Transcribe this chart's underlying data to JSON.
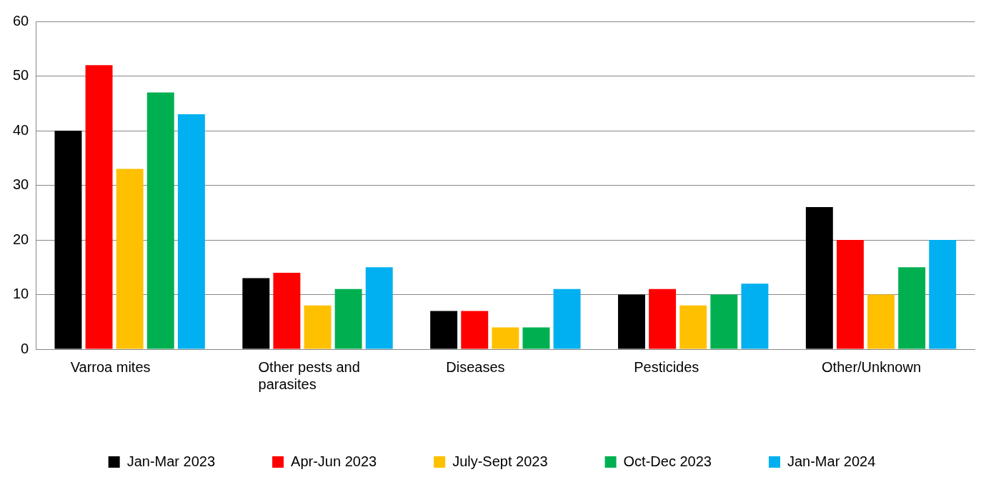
{
  "chart_data": {
    "type": "bar",
    "categories": [
      "Varroa mites",
      "Other pests and parasites",
      "Diseases",
      "Pesticides",
      "Other/Unknown"
    ],
    "series": [
      {
        "name": "Jan-Mar 2023",
        "color": "#000000",
        "values": [
          40,
          13,
          7,
          10,
          26
        ]
      },
      {
        "name": "Apr-Jun 2023",
        "color": "#ff0000",
        "values": [
          52,
          14,
          7,
          11,
          20
        ]
      },
      {
        "name": "July-Sept 2023",
        "color": "#ffc000",
        "values": [
          33,
          8,
          4,
          8,
          10
        ]
      },
      {
        "name": "Oct-Dec 2023",
        "color": "#00b050",
        "values": [
          47,
          11,
          4,
          10,
          15
        ]
      },
      {
        "name": "Jan-Mar 2024",
        "color": "#00b0f0",
        "values": [
          43,
          15,
          11,
          12,
          20
        ]
      }
    ],
    "ylim": [
      0,
      60
    ],
    "yticks": [
      0,
      10,
      20,
      30,
      40,
      50,
      60
    ],
    "grid": "y",
    "legend": "bottom"
  }
}
